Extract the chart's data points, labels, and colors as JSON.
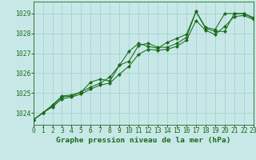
{
  "title": "Graphe pression niveau de la mer (hPa)",
  "x": [
    0,
    1,
    2,
    3,
    4,
    5,
    6,
    7,
    8,
    9,
    10,
    11,
    12,
    13,
    14,
    15,
    16,
    17,
    18,
    19,
    20,
    21,
    22,
    23
  ],
  "line1": [
    1023.65,
    1024.0,
    1024.35,
    1024.8,
    1024.85,
    1025.05,
    1025.55,
    1025.7,
    1025.6,
    1026.4,
    1027.1,
    1027.5,
    1027.35,
    1027.25,
    1027.55,
    1027.75,
    1027.95,
    1029.1,
    1028.25,
    1028.1,
    1028.1,
    1029.0,
    1029.0,
    1028.75
  ],
  "line2": [
    1023.65,
    1024.0,
    1024.4,
    1024.85,
    1024.9,
    1025.05,
    1025.3,
    1025.5,
    1025.8,
    1026.4,
    1026.6,
    1027.4,
    1027.5,
    1027.3,
    1027.3,
    1027.5,
    1027.8,
    1029.1,
    1028.3,
    1028.2,
    1029.0,
    1029.0,
    1029.0,
    1028.8
  ],
  "line3": [
    1023.65,
    1024.0,
    1024.3,
    1024.7,
    1024.8,
    1024.95,
    1025.2,
    1025.4,
    1025.5,
    1025.95,
    1026.35,
    1026.95,
    1027.2,
    1027.15,
    1027.2,
    1027.35,
    1027.65,
    1028.65,
    1028.15,
    1027.95,
    1028.35,
    1028.85,
    1028.9,
    1028.7
  ],
  "ylim": [
    1023.4,
    1029.6
  ],
  "yticks": [
    1024,
    1025,
    1026,
    1027,
    1028,
    1029
  ],
  "xlim": [
    0,
    23
  ],
  "line_color": "#1a6b1a",
  "bg_color": "#c8e8e8",
  "grid_color": "#9ecece",
  "label_color": "#1a6b1a",
  "title_color": "#1a6b1a",
  "title_fontsize": 6.8,
  "tick_fontsize": 5.8,
  "markersize": 2.2
}
